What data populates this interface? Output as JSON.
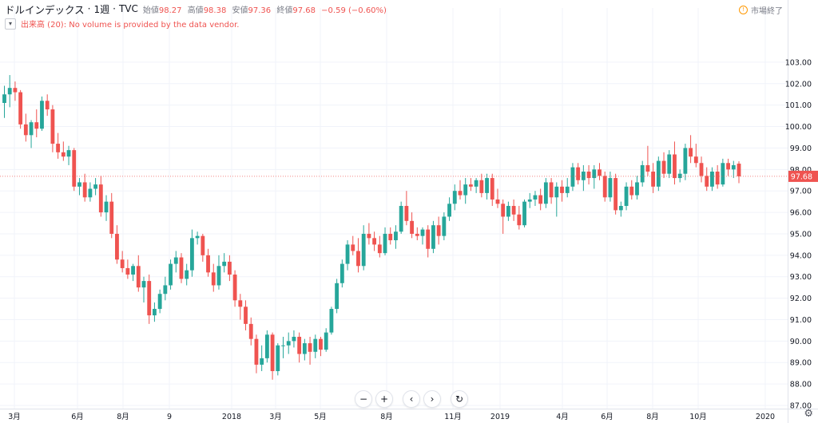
{
  "header": {
    "symbol": "ドルインデックス",
    "interval": "1週",
    "exchange": "TVC",
    "open_label": "始値",
    "open": "98.27",
    "high_label": "高値",
    "high": "98.38",
    "low_label": "安値",
    "low": "97.36",
    "close_label": "終値",
    "close": "97.68",
    "change": "−0.59 (−0.60%)"
  },
  "volume_notice": "出来高 (20): No volume is provided by the data vendor.",
  "market_status": "市場終了",
  "price_badge": "97.68",
  "colors": {
    "up": "#26a69a",
    "down": "#ef5350",
    "grid": "#f0f3fa",
    "axis": "#e0e3eb"
  },
  "controls": [
    "minus-icon",
    "plus-icon",
    "chevron-left-icon",
    "chevron-right-icon",
    "reset-icon"
  ],
  "chart_data": {
    "type": "candlestick",
    "y_ticks": [
      87.0,
      88.0,
      89.0,
      90.0,
      91.0,
      92.0,
      93.0,
      94.0,
      95.0,
      96.0,
      97.0,
      98.0,
      99.0,
      100.0,
      101.0,
      102.0,
      103.0
    ],
    "x_ticks": [
      "3月",
      "6月",
      "8月",
      "9",
      "2018",
      "3月",
      "5月",
      "8月",
      "11月",
      "2019",
      "4月",
      "6月",
      "8月",
      "10月",
      "2020"
    ],
    "ylim": [
      87.0,
      103.2
    ],
    "last_price": 97.68,
    "candles": [
      [
        101.1,
        101.9,
        100.4,
        101.5
      ],
      [
        101.5,
        102.4,
        100.9,
        101.8
      ],
      [
        101.8,
        102.1,
        101.2,
        101.6
      ],
      [
        101.6,
        101.7,
        99.9,
        100.1
      ],
      [
        100.1,
        100.6,
        99.3,
        99.6
      ],
      [
        99.6,
        100.3,
        99.0,
        100.2
      ],
      [
        100.2,
        100.8,
        99.5,
        99.9
      ],
      [
        99.9,
        101.4,
        99.8,
        101.2
      ],
      [
        101.2,
        101.5,
        100.5,
        100.8
      ],
      [
        100.8,
        101.0,
        98.8,
        99.2
      ],
      [
        99.2,
        99.7,
        98.5,
        98.8
      ],
      [
        98.8,
        99.3,
        98.4,
        98.6
      ],
      [
        98.6,
        99.1,
        98.2,
        98.9
      ],
      [
        98.9,
        99.0,
        97.0,
        97.2
      ],
      [
        97.2,
        97.6,
        96.8,
        97.4
      ],
      [
        97.4,
        97.8,
        96.5,
        96.7
      ],
      [
        96.7,
        97.4,
        96.5,
        97.1
      ],
      [
        97.1,
        97.6,
        96.8,
        97.3
      ],
      [
        97.3,
        97.7,
        95.8,
        96.0
      ],
      [
        96.0,
        96.8,
        95.6,
        96.5
      ],
      [
        96.5,
        96.9,
        94.8,
        95.0
      ],
      [
        95.0,
        95.4,
        93.6,
        93.8
      ],
      [
        93.8,
        94.2,
        93.2,
        93.4
      ],
      [
        93.4,
        93.8,
        92.9,
        93.1
      ],
      [
        93.1,
        93.6,
        92.8,
        93.5
      ],
      [
        93.5,
        94.0,
        92.3,
        92.5
      ],
      [
        92.5,
        93.0,
        91.8,
        92.8
      ],
      [
        92.8,
        93.1,
        90.8,
        91.2
      ],
      [
        91.2,
        91.8,
        90.9,
        91.5
      ],
      [
        91.5,
        92.4,
        91.3,
        92.2
      ],
      [
        92.2,
        93.0,
        91.9,
        92.6
      ],
      [
        92.6,
        93.8,
        92.4,
        93.6
      ],
      [
        93.6,
        94.2,
        93.2,
        93.9
      ],
      [
        93.9,
        94.1,
        92.7,
        92.9
      ],
      [
        92.9,
        93.6,
        92.6,
        93.3
      ],
      [
        93.3,
        95.2,
        93.0,
        94.8
      ],
      [
        94.8,
        95.1,
        94.5,
        94.9
      ],
      [
        94.9,
        95.0,
        93.7,
        94.0
      ],
      [
        94.0,
        94.3,
        93.0,
        93.2
      ],
      [
        93.2,
        93.6,
        92.3,
        92.6
      ],
      [
        92.6,
        94.0,
        92.4,
        93.5
      ],
      [
        93.5,
        94.1,
        93.2,
        93.7
      ],
      [
        93.7,
        94.0,
        92.8,
        93.1
      ],
      [
        93.1,
        93.3,
        91.6,
        91.9
      ],
      [
        91.9,
        92.2,
        91.0,
        91.6
      ],
      [
        91.6,
        91.9,
        90.5,
        90.8
      ],
      [
        90.8,
        91.1,
        89.8,
        90.1
      ],
      [
        90.1,
        90.3,
        88.5,
        88.9
      ],
      [
        88.9,
        89.8,
        88.6,
        89.2
      ],
      [
        89.2,
        90.5,
        89.0,
        90.3
      ],
      [
        90.3,
        90.4,
        88.2,
        88.6
      ],
      [
        88.6,
        89.9,
        88.4,
        89.8
      ],
      [
        89.8,
        90.2,
        89.2,
        89.8
      ],
      [
        89.8,
        90.4,
        89.4,
        90.0
      ],
      [
        90.0,
        90.5,
        89.7,
        90.2
      ],
      [
        90.2,
        90.4,
        89.0,
        89.4
      ],
      [
        89.4,
        90.1,
        89.1,
        89.9
      ],
      [
        89.9,
        90.2,
        88.9,
        89.5
      ],
      [
        89.5,
        90.3,
        89.2,
        90.1
      ],
      [
        90.1,
        90.2,
        89.3,
        89.6
      ],
      [
        89.6,
        90.6,
        89.5,
        90.4
      ],
      [
        90.4,
        91.6,
        90.3,
        91.5
      ],
      [
        91.5,
        92.9,
        91.3,
        92.7
      ],
      [
        92.7,
        93.8,
        92.5,
        93.6
      ],
      [
        93.6,
        94.7,
        93.3,
        94.5
      ],
      [
        94.5,
        94.9,
        94.0,
        94.2
      ],
      [
        94.2,
        94.8,
        93.2,
        93.5
      ],
      [
        93.5,
        95.4,
        93.3,
        95.0
      ],
      [
        95.0,
        95.5,
        94.5,
        94.8
      ],
      [
        94.8,
        95.1,
        94.2,
        94.5
      ],
      [
        94.5,
        94.9,
        93.9,
        94.1
      ],
      [
        94.1,
        95.3,
        94.0,
        95.0
      ],
      [
        95.0,
        95.3,
        94.5,
        94.7
      ],
      [
        94.7,
        95.4,
        94.3,
        95.1
      ],
      [
        95.1,
        96.5,
        95.0,
        96.3
      ],
      [
        96.3,
        97.0,
        95.4,
        95.6
      ],
      [
        95.6,
        96.0,
        94.8,
        95.0
      ],
      [
        95.0,
        95.3,
        94.7,
        94.9
      ],
      [
        94.9,
        95.3,
        94.5,
        95.2
      ],
      [
        95.2,
        95.4,
        93.9,
        94.3
      ],
      [
        94.3,
        95.6,
        94.1,
        95.4
      ],
      [
        95.4,
        95.8,
        94.5,
        94.9
      ],
      [
        94.9,
        96.0,
        94.7,
        95.8
      ],
      [
        95.8,
        96.7,
        95.6,
        96.4
      ],
      [
        96.4,
        97.3,
        96.1,
        97.0
      ],
      [
        97.0,
        97.5,
        96.6,
        96.8
      ],
      [
        96.8,
        97.6,
        96.4,
        97.3
      ],
      [
        97.3,
        97.6,
        97.0,
        97.2
      ],
      [
        97.2,
        97.6,
        96.9,
        97.5
      ],
      [
        97.5,
        97.8,
        96.7,
        96.9
      ],
      [
        96.9,
        97.8,
        96.6,
        97.6
      ],
      [
        97.6,
        97.8,
        96.3,
        96.6
      ],
      [
        96.6,
        97.1,
        96.2,
        96.4
      ],
      [
        96.4,
        96.6,
        95.0,
        95.8
      ],
      [
        95.8,
        96.5,
        95.6,
        96.3
      ],
      [
        96.3,
        96.6,
        95.6,
        95.9
      ],
      [
        95.9,
        96.3,
        95.2,
        95.4
      ],
      [
        95.4,
        96.6,
        95.3,
        96.5
      ],
      [
        96.5,
        96.9,
        96.2,
        96.6
      ],
      [
        96.6,
        97.0,
        96.3,
        96.8
      ],
      [
        96.8,
        97.1,
        96.1,
        96.4
      ],
      [
        96.4,
        97.6,
        96.2,
        97.4
      ],
      [
        97.4,
        97.6,
        96.4,
        96.7
      ],
      [
        96.7,
        97.4,
        95.8,
        97.2
      ],
      [
        97.2,
        97.5,
        96.5,
        96.9
      ],
      [
        96.9,
        97.6,
        96.7,
        97.2
      ],
      [
        97.2,
        98.3,
        97.0,
        98.1
      ],
      [
        98.1,
        98.3,
        97.3,
        97.5
      ],
      [
        97.5,
        98.2,
        97.0,
        97.9
      ],
      [
        97.9,
        98.2,
        97.3,
        97.6
      ],
      [
        97.6,
        98.2,
        97.1,
        98.0
      ],
      [
        98.0,
        98.3,
        97.5,
        97.7
      ],
      [
        97.7,
        97.9,
        96.5,
        96.7
      ],
      [
        96.7,
        97.9,
        96.5,
        97.6
      ],
      [
        97.6,
        97.8,
        95.9,
        96.1
      ],
      [
        96.1,
        96.5,
        95.8,
        96.3
      ],
      [
        96.3,
        97.4,
        96.1,
        97.2
      ],
      [
        97.2,
        97.5,
        96.6,
        96.8
      ],
      [
        96.8,
        97.7,
        96.6,
        97.4
      ],
      [
        97.4,
        98.4,
        97.2,
        98.2
      ],
      [
        98.2,
        99.1,
        97.7,
        97.9
      ],
      [
        97.9,
        98.3,
        96.9,
        97.2
      ],
      [
        97.2,
        98.6,
        97.0,
        98.4
      ],
      [
        98.4,
        98.8,
        97.6,
        97.8
      ],
      [
        97.8,
        98.9,
        97.6,
        98.7
      ],
      [
        98.7,
        99.3,
        97.3,
        97.6
      ],
      [
        97.6,
        98.0,
        97.4,
        97.8
      ],
      [
        97.8,
        99.2,
        97.5,
        99.0
      ],
      [
        99.0,
        99.6,
        98.3,
        98.6
      ],
      [
        98.6,
        99.2,
        98.1,
        98.3
      ],
      [
        98.3,
        98.6,
        97.4,
        97.7
      ],
      [
        97.7,
        98.1,
        97.0,
        97.2
      ],
      [
        97.2,
        98.1,
        97.0,
        97.9
      ],
      [
        97.9,
        98.2,
        97.1,
        97.3
      ],
      [
        97.3,
        98.5,
        97.2,
        98.3
      ],
      [
        98.3,
        98.5,
        97.7,
        98.0
      ],
      [
        98.0,
        98.4,
        97.6,
        98.2
      ],
      [
        98.27,
        98.38,
        97.36,
        97.68
      ]
    ]
  }
}
